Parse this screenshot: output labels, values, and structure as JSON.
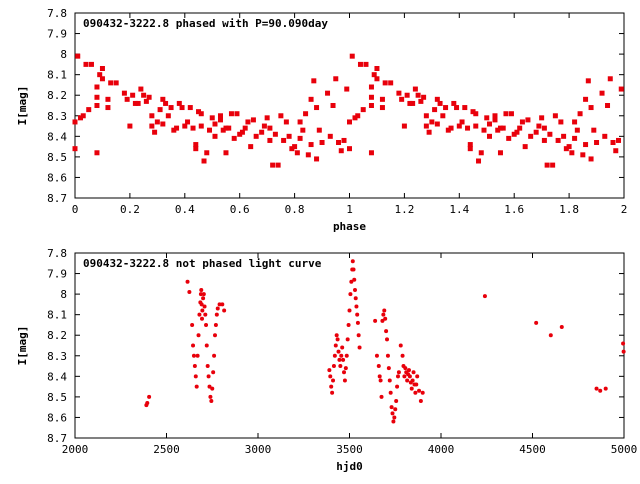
{
  "chart_data": [
    {
      "type": "scatter",
      "title": "090432-3222.8 phased with P=90.090day",
      "xlabel": "phase",
      "ylabel": "I[mag]",
      "xlim": [
        0,
        2
      ],
      "ylim": [
        8.7,
        7.8
      ],
      "y_inverted": true,
      "grid": false,
      "marker_color": "#e8000b",
      "x_ticks": [
        "0",
        "0.2",
        "0.4",
        "0.6",
        "0.8",
        "1",
        "1.2",
        "1.4",
        "1.6",
        "1.8",
        "2"
      ],
      "y_ticks": [
        "7.8",
        "7.9",
        "8",
        "8.1",
        "8.2",
        "8.3",
        "8.4",
        "8.5",
        "8.6",
        "8.7"
      ],
      "points": [
        [
          0.0,
          8.33
        ],
        [
          0.0,
          8.46
        ],
        [
          0.01,
          8.01
        ],
        [
          0.02,
          8.31
        ],
        [
          0.03,
          8.3
        ],
        [
          0.04,
          8.05
        ],
        [
          0.05,
          8.27
        ],
        [
          0.06,
          8.05
        ],
        [
          0.08,
          8.48
        ],
        [
          0.08,
          8.21
        ],
        [
          0.08,
          8.25
        ],
        [
          0.08,
          8.16
        ],
        [
          0.09,
          8.1
        ],
        [
          0.1,
          8.07
        ],
        [
          0.1,
          8.12
        ],
        [
          0.12,
          8.26
        ],
        [
          0.12,
          8.22
        ],
        [
          0.13,
          8.14
        ],
        [
          0.15,
          8.14
        ],
        [
          0.18,
          8.19
        ],
        [
          0.19,
          8.22
        ],
        [
          0.2,
          8.35
        ],
        [
          0.21,
          8.2
        ],
        [
          0.22,
          8.24
        ],
        [
          0.23,
          8.24
        ],
        [
          0.24,
          8.17
        ],
        [
          0.25,
          8.2
        ],
        [
          0.26,
          8.23
        ],
        [
          0.27,
          8.21
        ],
        [
          0.28,
          8.3
        ],
        [
          0.28,
          8.35
        ],
        [
          0.29,
          8.38
        ],
        [
          0.3,
          8.33
        ],
        [
          0.31,
          8.27
        ],
        [
          0.32,
          8.22
        ],
        [
          0.32,
          8.34
        ],
        [
          0.33,
          8.24
        ],
        [
          0.34,
          8.3
        ],
        [
          0.35,
          8.26
        ],
        [
          0.36,
          8.37
        ],
        [
          0.37,
          8.36
        ],
        [
          0.38,
          8.24
        ],
        [
          0.39,
          8.26
        ],
        [
          0.4,
          8.35
        ],
        [
          0.41,
          8.33
        ],
        [
          0.42,
          8.26
        ],
        [
          0.43,
          8.36
        ],
        [
          0.44,
          8.46
        ],
        [
          0.44,
          8.44
        ],
        [
          0.45,
          8.28
        ],
        [
          0.46,
          8.35
        ],
        [
          0.46,
          8.29
        ],
        [
          0.47,
          8.52
        ],
        [
          0.48,
          8.48
        ],
        [
          0.49,
          8.37
        ],
        [
          0.5,
          8.31
        ],
        [
          0.51,
          8.34
        ],
        [
          0.51,
          8.4
        ],
        [
          0.53,
          8.32
        ],
        [
          0.53,
          8.3
        ],
        [
          0.54,
          8.37
        ],
        [
          0.55,
          8.48
        ],
        [
          0.55,
          8.36
        ],
        [
          0.56,
          8.36
        ],
        [
          0.57,
          8.29
        ],
        [
          0.58,
          8.41
        ],
        [
          0.59,
          8.29
        ],
        [
          0.6,
          8.39
        ],
        [
          0.61,
          8.38
        ],
        [
          0.62,
          8.36
        ],
        [
          0.63,
          8.33
        ],
        [
          0.64,
          8.45
        ],
        [
          0.65,
          8.32
        ],
        [
          0.66,
          8.4
        ],
        [
          0.68,
          8.38
        ],
        [
          0.69,
          8.35
        ],
        [
          0.7,
          8.31
        ],
        [
          0.71,
          8.42
        ],
        [
          0.71,
          8.36
        ],
        [
          0.72,
          8.54
        ],
        [
          0.73,
          8.39
        ],
        [
          0.74,
          8.54
        ],
        [
          0.75,
          8.3
        ],
        [
          0.76,
          8.42
        ],
        [
          0.77,
          8.33
        ],
        [
          0.78,
          8.4
        ],
        [
          0.79,
          8.46
        ],
        [
          0.8,
          8.45
        ],
        [
          0.81,
          8.48
        ],
        [
          0.82,
          8.33
        ],
        [
          0.82,
          8.41
        ],
        [
          0.83,
          8.37
        ],
        [
          0.84,
          8.29
        ],
        [
          0.85,
          8.49
        ],
        [
          0.86,
          8.44
        ],
        [
          0.86,
          8.22
        ],
        [
          0.87,
          8.13
        ],
        [
          0.88,
          8.26
        ],
        [
          0.88,
          8.51
        ],
        [
          0.89,
          8.37
        ],
        [
          0.9,
          8.43
        ],
        [
          0.92,
          8.19
        ],
        [
          0.93,
          8.4
        ],
        [
          0.94,
          8.25
        ],
        [
          0.95,
          8.12
        ],
        [
          0.96,
          8.43
        ],
        [
          0.97,
          8.47
        ],
        [
          0.98,
          8.42
        ],
        [
          0.99,
          8.17
        ],
        [
          1.0,
          8.33
        ],
        [
          1.0,
          8.46
        ],
        [
          1.01,
          8.01
        ],
        [
          1.02,
          8.31
        ],
        [
          1.03,
          8.3
        ],
        [
          1.04,
          8.05
        ],
        [
          1.05,
          8.27
        ],
        [
          1.06,
          8.05
        ],
        [
          1.08,
          8.48
        ],
        [
          1.08,
          8.21
        ],
        [
          1.08,
          8.25
        ],
        [
          1.08,
          8.16
        ],
        [
          1.09,
          8.1
        ],
        [
          1.1,
          8.07
        ],
        [
          1.1,
          8.12
        ],
        [
          1.12,
          8.26
        ],
        [
          1.12,
          8.22
        ],
        [
          1.13,
          8.14
        ],
        [
          1.15,
          8.14
        ],
        [
          1.18,
          8.19
        ],
        [
          1.19,
          8.22
        ],
        [
          1.2,
          8.35
        ],
        [
          1.21,
          8.2
        ],
        [
          1.22,
          8.24
        ],
        [
          1.23,
          8.24
        ],
        [
          1.24,
          8.17
        ],
        [
          1.25,
          8.2
        ],
        [
          1.26,
          8.23
        ],
        [
          1.27,
          8.21
        ],
        [
          1.28,
          8.3
        ],
        [
          1.28,
          8.35
        ],
        [
          1.29,
          8.38
        ],
        [
          1.3,
          8.33
        ],
        [
          1.31,
          8.27
        ],
        [
          1.32,
          8.22
        ],
        [
          1.32,
          8.34
        ],
        [
          1.33,
          8.24
        ],
        [
          1.34,
          8.3
        ],
        [
          1.35,
          8.26
        ],
        [
          1.36,
          8.37
        ],
        [
          1.37,
          8.36
        ],
        [
          1.38,
          8.24
        ],
        [
          1.39,
          8.26
        ],
        [
          1.4,
          8.35
        ],
        [
          1.41,
          8.33
        ],
        [
          1.42,
          8.26
        ],
        [
          1.43,
          8.36
        ],
        [
          1.44,
          8.46
        ],
        [
          1.44,
          8.44
        ],
        [
          1.45,
          8.28
        ],
        [
          1.46,
          8.35
        ],
        [
          1.46,
          8.29
        ],
        [
          1.47,
          8.52
        ],
        [
          1.48,
          8.48
        ],
        [
          1.49,
          8.37
        ],
        [
          1.5,
          8.31
        ],
        [
          1.51,
          8.34
        ],
        [
          1.51,
          8.4
        ],
        [
          1.53,
          8.32
        ],
        [
          1.53,
          8.3
        ],
        [
          1.54,
          8.37
        ],
        [
          1.55,
          8.48
        ],
        [
          1.55,
          8.36
        ],
        [
          1.56,
          8.36
        ],
        [
          1.57,
          8.29
        ],
        [
          1.58,
          8.41
        ],
        [
          1.59,
          8.29
        ],
        [
          1.6,
          8.39
        ],
        [
          1.61,
          8.38
        ],
        [
          1.62,
          8.36
        ],
        [
          1.63,
          8.33
        ],
        [
          1.64,
          8.45
        ],
        [
          1.65,
          8.32
        ],
        [
          1.66,
          8.4
        ],
        [
          1.68,
          8.38
        ],
        [
          1.69,
          8.35
        ],
        [
          1.7,
          8.31
        ],
        [
          1.71,
          8.42
        ],
        [
          1.71,
          8.36
        ],
        [
          1.72,
          8.54
        ],
        [
          1.73,
          8.39
        ],
        [
          1.74,
          8.54
        ],
        [
          1.75,
          8.3
        ],
        [
          1.76,
          8.42
        ],
        [
          1.77,
          8.33
        ],
        [
          1.78,
          8.4
        ],
        [
          1.79,
          8.46
        ],
        [
          1.8,
          8.45
        ],
        [
          1.81,
          8.48
        ],
        [
          1.82,
          8.33
        ],
        [
          1.82,
          8.41
        ],
        [
          1.83,
          8.37
        ],
        [
          1.84,
          8.29
        ],
        [
          1.85,
          8.49
        ],
        [
          1.86,
          8.44
        ],
        [
          1.86,
          8.22
        ],
        [
          1.87,
          8.13
        ],
        [
          1.88,
          8.26
        ],
        [
          1.88,
          8.51
        ],
        [
          1.89,
          8.37
        ],
        [
          1.9,
          8.43
        ],
        [
          1.92,
          8.19
        ],
        [
          1.93,
          8.4
        ],
        [
          1.94,
          8.25
        ],
        [
          1.95,
          8.12
        ],
        [
          1.96,
          8.43
        ],
        [
          1.97,
          8.47
        ],
        [
          1.98,
          8.42
        ],
        [
          1.99,
          8.17
        ]
      ]
    },
    {
      "type": "scatter",
      "title": "090432-3222.8 not phased light curve",
      "xlabel": "hjd0",
      "ylabel": "I[mag]",
      "xlim": [
        2000,
        5000
      ],
      "ylim": [
        8.7,
        7.8
      ],
      "y_inverted": true,
      "grid": false,
      "marker_color": "#e8000b",
      "x_ticks": [
        "2000",
        "2500",
        "3000",
        "3500",
        "4000",
        "4500",
        "5000"
      ],
      "y_ticks": [
        "7.8",
        "7.9",
        "8",
        "8.1",
        "8.2",
        "8.3",
        "8.4",
        "8.5",
        "8.6",
        "8.7"
      ],
      "points": [
        [
          2390,
          8.54
        ],
        [
          2395,
          8.53
        ],
        [
          2405,
          8.5
        ],
        [
          2615,
          7.94
        ],
        [
          2625,
          7.99
        ],
        [
          2640,
          8.15
        ],
        [
          2645,
          8.25
        ],
        [
          2650,
          8.3
        ],
        [
          2655,
          8.35
        ],
        [
          2660,
          8.4
        ],
        [
          2665,
          8.45
        ],
        [
          2670,
          8.3
        ],
        [
          2675,
          8.2
        ],
        [
          2680,
          8.1
        ],
        [
          2685,
          8.04
        ],
        [
          2688,
          8.0
        ],
        [
          2690,
          7.98
        ],
        [
          2692,
          8.05
        ],
        [
          2694,
          8.12
        ],
        [
          2696,
          8.08
        ],
        [
          2700,
          8.02
        ],
        [
          2704,
          8.0
        ],
        [
          2708,
          8.06
        ],
        [
          2712,
          8.1
        ],
        [
          2716,
          8.15
        ],
        [
          2720,
          8.25
        ],
        [
          2725,
          8.35
        ],
        [
          2730,
          8.4
        ],
        [
          2735,
          8.45
        ],
        [
          2740,
          8.5
        ],
        [
          2745,
          8.52
        ],
        [
          2750,
          8.46
        ],
        [
          2755,
          8.38
        ],
        [
          2760,
          8.3
        ],
        [
          2765,
          8.2
        ],
        [
          2770,
          8.15
        ],
        [
          2775,
          8.1
        ],
        [
          2780,
          8.07
        ],
        [
          2790,
          8.05
        ],
        [
          2805,
          8.05
        ],
        [
          2815,
          8.08
        ],
        [
          3390,
          8.37
        ],
        [
          3395,
          8.4
        ],
        [
          3400,
          8.45
        ],
        [
          3405,
          8.48
        ],
        [
          3410,
          8.42
        ],
        [
          3415,
          8.35
        ],
        [
          3420,
          8.3
        ],
        [
          3425,
          8.25
        ],
        [
          3430,
          8.2
        ],
        [
          3435,
          8.22
        ],
        [
          3440,
          8.28
        ],
        [
          3445,
          8.32
        ],
        [
          3450,
          8.35
        ],
        [
          3455,
          8.3
        ],
        [
          3460,
          8.26
        ],
        [
          3465,
          8.32
        ],
        [
          3470,
          8.38
        ],
        [
          3475,
          8.42
        ],
        [
          3480,
          8.36
        ],
        [
          3485,
          8.3
        ],
        [
          3490,
          8.22
        ],
        [
          3495,
          8.15
        ],
        [
          3500,
          8.08
        ],
        [
          3505,
          8.0
        ],
        [
          3510,
          7.94
        ],
        [
          3515,
          7.88
        ],
        [
          3518,
          7.84
        ],
        [
          3522,
          7.88
        ],
        [
          3526,
          7.93
        ],
        [
          3530,
          7.98
        ],
        [
          3534,
          8.02
        ],
        [
          3538,
          8.06
        ],
        [
          3542,
          8.1
        ],
        [
          3546,
          8.14
        ],
        [
          3550,
          8.2
        ],
        [
          3555,
          8.26
        ],
        [
          3640,
          8.13
        ],
        [
          3650,
          8.3
        ],
        [
          3660,
          8.35
        ],
        [
          3665,
          8.4
        ],
        [
          3670,
          8.42
        ],
        [
          3675,
          8.5
        ],
        [
          3680,
          8.13
        ],
        [
          3685,
          8.1
        ],
        [
          3690,
          8.08
        ],
        [
          3695,
          8.12
        ],
        [
          3700,
          8.18
        ],
        [
          3705,
          8.22
        ],
        [
          3710,
          8.3
        ],
        [
          3715,
          8.36
        ],
        [
          3720,
          8.42
        ],
        [
          3725,
          8.48
        ],
        [
          3730,
          8.55
        ],
        [
          3735,
          8.58
        ],
        [
          3740,
          8.62
        ],
        [
          3745,
          8.6
        ],
        [
          3750,
          8.56
        ],
        [
          3755,
          8.52
        ],
        [
          3760,
          8.45
        ],
        [
          3765,
          8.4
        ],
        [
          3770,
          8.38
        ],
        [
          3780,
          8.25
        ],
        [
          3790,
          8.3
        ],
        [
          3795,
          8.35
        ],
        [
          3800,
          8.4
        ],
        [
          3805,
          8.36
        ],
        [
          3810,
          8.38
        ],
        [
          3815,
          8.42
        ],
        [
          3820,
          8.39
        ],
        [
          3825,
          8.37
        ],
        [
          3830,
          8.4
        ],
        [
          3835,
          8.43
        ],
        [
          3840,
          8.46
        ],
        [
          3845,
          8.42
        ],
        [
          3850,
          8.38
        ],
        [
          3855,
          8.44
        ],
        [
          3860,
          8.48
        ],
        [
          3865,
          8.44
        ],
        [
          3870,
          8.4
        ],
        [
          3880,
          8.47
        ],
        [
          3890,
          8.52
        ],
        [
          3900,
          8.48
        ],
        [
          4240,
          8.01
        ],
        [
          4520,
          8.14
        ],
        [
          4600,
          8.2
        ],
        [
          4660,
          8.16
        ],
        [
          4850,
          8.46
        ],
        [
          4870,
          8.47
        ],
        [
          4900,
          8.46
        ],
        [
          4995,
          8.24
        ],
        [
          4998,
          8.28
        ]
      ]
    }
  ]
}
